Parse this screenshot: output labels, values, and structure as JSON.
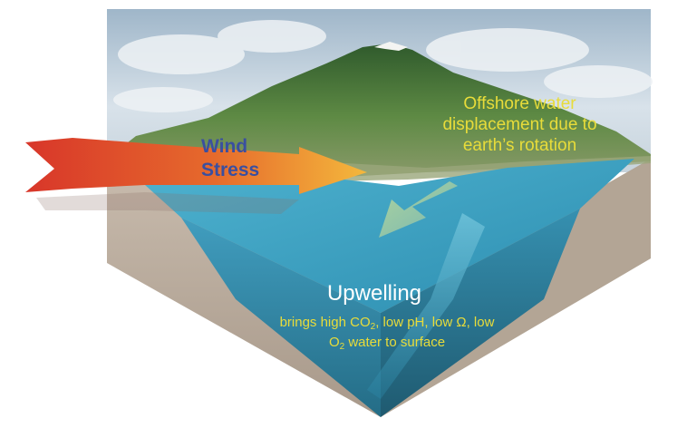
{
  "diagram": {
    "wind_label_line1": "Wind",
    "wind_label_line2": "Stress",
    "offshore_line1": "Offshore water",
    "offshore_line2": "displacement due to",
    "offshore_line3": "earth’s rotation",
    "upwelling_title": "Upwelling",
    "upwelling_desc": {
      "part1": "brings high CO",
      "sub1": "2",
      "part2": ", low pH, low Ω, low",
      "sub2": "2",
      "part3": " water to surface",
      "o_letter": "O"
    }
  },
  "colors": {
    "ocean_surface": "#3aa6c8",
    "ocean_deep": "#1e6f8c",
    "land_green": "#4f7a3a",
    "ground_brown": "#b7a898",
    "wind_arrow_start": "#e0402a",
    "wind_arrow_end": "#f2b13a",
    "label_yellow": "#e8dc3a",
    "label_blue": "#3a4fa0"
  }
}
